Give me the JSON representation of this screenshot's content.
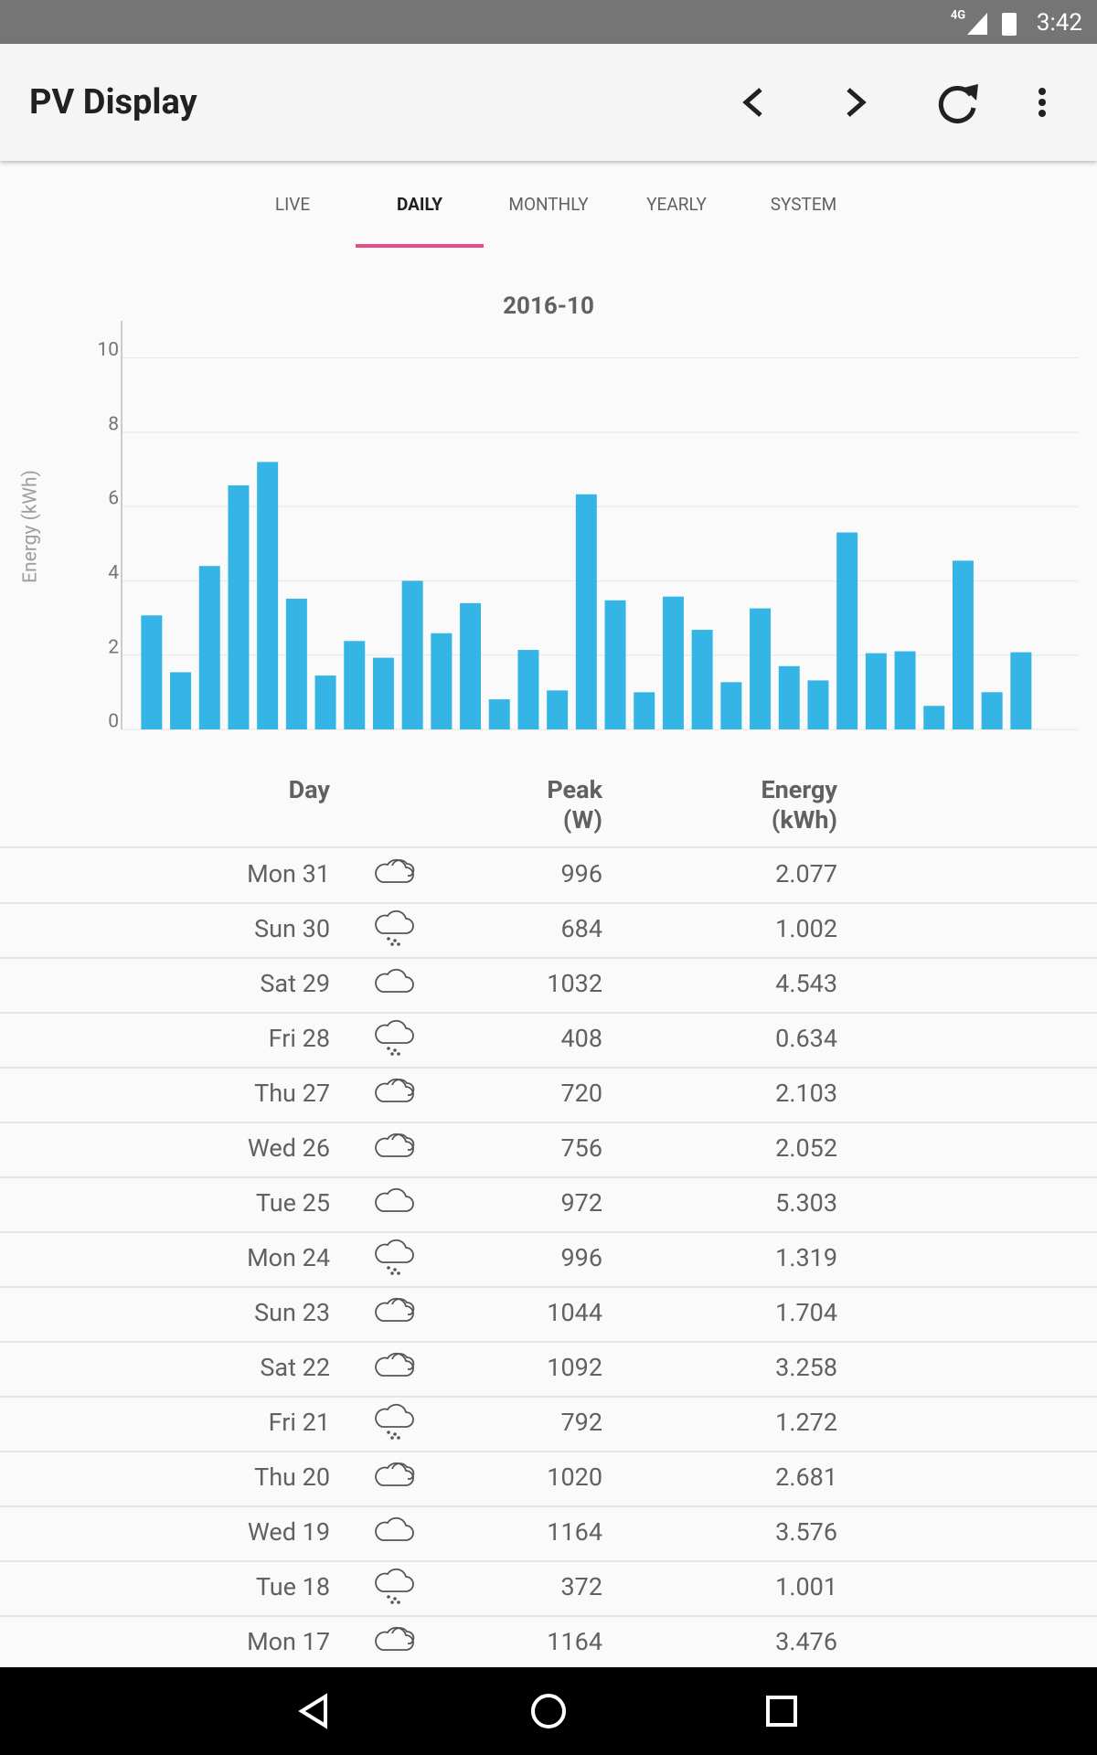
{
  "status_bar": {
    "network": "4G",
    "time": "3:42"
  },
  "app_bar": {
    "title": "PV Display"
  },
  "tabs": {
    "items": [
      "LIVE",
      "DAILY",
      "MONTHLY",
      "YEARLY",
      "SYSTEM"
    ],
    "selected": 1
  },
  "chart_data": {
    "type": "bar",
    "title": "2016-10",
    "y_label": "Energy (kWh)",
    "values": [
      3.07,
      1.54,
      4.4,
      6.57,
      7.2,
      3.52,
      1.45,
      2.38,
      1.93,
      4.0,
      2.59,
      3.4,
      0.81,
      2.14,
      1.05,
      6.33,
      3.476,
      1.001,
      3.576,
      2.681,
      1.272,
      3.258,
      1.704,
      1.319,
      5.303,
      2.052,
      2.103,
      0.634,
      4.543,
      1.002,
      2.077
    ],
    "color": "#35b5e5",
    "ylim": [
      0,
      11
    ],
    "yticks": [
      0,
      2,
      4,
      6,
      8,
      10
    ],
    "grid": true
  },
  "table": {
    "headers": [
      [
        "Day"
      ],
      [
        "Peak",
        "(W)"
      ],
      [
        "Energy",
        "(kWh)"
      ]
    ],
    "rows": [
      {
        "day": "Mon 31",
        "icon": "clouds",
        "peak": 996,
        "energy": 2.077
      },
      {
        "day": "Sun 30",
        "icon": "rain",
        "peak": 684,
        "energy": 1.002
      },
      {
        "day": "Sat 29",
        "icon": "cloud",
        "peak": 1032,
        "energy": 4.543
      },
      {
        "day": "Fri 28",
        "icon": "rain",
        "peak": 408,
        "energy": 0.634
      },
      {
        "day": "Thu 27",
        "icon": "clouds",
        "peak": 720,
        "energy": 2.103
      },
      {
        "day": "Wed 26",
        "icon": "clouds",
        "peak": 756,
        "energy": 2.052
      },
      {
        "day": "Tue 25",
        "icon": "cloud",
        "peak": 972,
        "energy": 5.303
      },
      {
        "day": "Mon 24",
        "icon": "rain",
        "peak": 996,
        "energy": 1.319
      },
      {
        "day": "Sun 23",
        "icon": "clouds",
        "peak": 1044,
        "energy": 1.704
      },
      {
        "day": "Sat 22",
        "icon": "clouds",
        "peak": 1092,
        "energy": 3.258
      },
      {
        "day": "Fri 21",
        "icon": "rain",
        "peak": 792,
        "energy": 1.272
      },
      {
        "day": "Thu 20",
        "icon": "clouds",
        "peak": 1020,
        "energy": 2.681
      },
      {
        "day": "Wed 19",
        "icon": "cloud",
        "peak": 1164,
        "energy": 3.576
      },
      {
        "day": "Tue 18",
        "icon": "rain",
        "peak": 372,
        "energy": 1.001
      },
      {
        "day": "Mon 17",
        "icon": "clouds",
        "peak": 1164,
        "energy": 3.476
      }
    ]
  }
}
